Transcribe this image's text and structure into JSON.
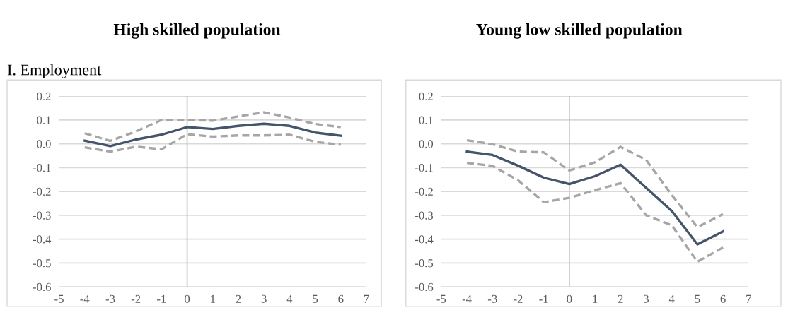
{
  "chart_data": [
    {
      "type": "line",
      "title": "High skilled population",
      "subtitle": "I. Employment",
      "x": [
        -4,
        -3,
        -2,
        -1,
        0,
        1,
        2,
        3,
        4,
        5,
        6
      ],
      "xlim": [
        -5,
        7
      ],
      "xticks": [
        -5,
        -4,
        -3,
        -2,
        -1,
        0,
        1,
        2,
        3,
        4,
        5,
        6,
        7
      ],
      "ylim": [
        -0.6,
        0.2
      ],
      "yticks": [
        {
          "value": -0.6,
          "label": "-0.6"
        },
        {
          "value": -0.5,
          "label": "-0.5"
        },
        {
          "value": -0.4,
          "label": "-0.4"
        },
        {
          "value": -0.3,
          "label": "-0.3"
        },
        {
          "value": -0.2,
          "label": "-0.2"
        },
        {
          "value": -0.1,
          "label": "-0.1"
        },
        {
          "value": 0,
          "label": "0.0"
        },
        {
          "value": 0.1,
          "label": "0.1"
        },
        {
          "value": 0.2,
          "label": "0.2"
        }
      ],
      "grid": "y",
      "legend": false,
      "ref_lines": [
        {
          "axis": "x",
          "value": 0,
          "color": "#bfbfbf"
        }
      ],
      "series": [
        {
          "color": "#a6a6a6",
          "line_style": "dashed",
          "values": [
            0.044,
            0.012,
            0.052,
            0.1,
            0.1,
            0.097,
            0.115,
            0.132,
            0.11,
            0.083,
            0.07
          ]
        },
        {
          "color": "#a6a6a6",
          "line_style": "dashed",
          "values": [
            -0.015,
            -0.033,
            -0.012,
            -0.023,
            0.04,
            0.03,
            0.035,
            0.035,
            0.038,
            0.008,
            -0.004
          ]
        },
        {
          "color": "#44546a",
          "line_style": "solid",
          "values": [
            0.013,
            -0.01,
            0.018,
            0.038,
            0.07,
            0.062,
            0.075,
            0.084,
            0.075,
            0.047,
            0.034
          ]
        }
      ]
    },
    {
      "type": "line",
      "title": "Young low skilled population",
      "x": [
        -4,
        -3,
        -2,
        -1,
        0,
        1,
        2,
        3,
        4,
        5,
        6
      ],
      "xlim": [
        -5,
        7
      ],
      "xticks": [
        -5,
        -4,
        -3,
        -2,
        -1,
        0,
        1,
        2,
        3,
        4,
        5,
        6,
        7
      ],
      "ylim": [
        -0.6,
        0.2
      ],
      "yticks": [
        {
          "value": -0.6,
          "label": "-0.6"
        },
        {
          "value": -0.5,
          "label": "-0.5"
        },
        {
          "value": -0.4,
          "label": "-0.4"
        },
        {
          "value": -0.3,
          "label": "-0.3"
        },
        {
          "value": -0.2,
          "label": "-0.2"
        },
        {
          "value": -0.1,
          "label": "-0.1"
        },
        {
          "value": 0,
          "label": "0.0"
        },
        {
          "value": 0.1,
          "label": "0.1"
        },
        {
          "value": 0.2,
          "label": "0.2"
        }
      ],
      "grid": "y",
      "legend": false,
      "ref_lines": [
        {
          "axis": "x",
          "value": 0,
          "color": "#bfbfbf"
        }
      ],
      "series": [
        {
          "color": "#a6a6a6",
          "line_style": "dashed",
          "values": [
            0.015,
            -0.002,
            -0.033,
            -0.036,
            -0.112,
            -0.078,
            -0.013,
            -0.068,
            -0.215,
            -0.35,
            -0.295
          ]
        },
        {
          "color": "#a6a6a6",
          "line_style": "dashed",
          "values": [
            -0.08,
            -0.093,
            -0.153,
            -0.245,
            -0.227,
            -0.195,
            -0.165,
            -0.3,
            -0.342,
            -0.495,
            -0.435
          ]
        },
        {
          "color": "#44546a",
          "line_style": "solid",
          "values": [
            -0.033,
            -0.047,
            -0.092,
            -0.142,
            -0.169,
            -0.136,
            -0.088,
            -0.185,
            -0.282,
            -0.422,
            -0.368
          ]
        }
      ]
    }
  ]
}
